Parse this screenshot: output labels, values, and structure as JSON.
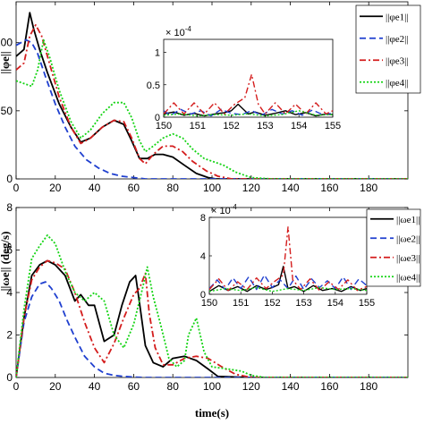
{
  "chart_data": [
    {
      "type": "line",
      "xlabel": "",
      "ylabel": "||φe||",
      "xlim": [
        0,
        200
      ],
      "ylim": [
        0,
        130
      ],
      "xticks": [
        "0",
        "20",
        "40",
        "60",
        "80",
        "100",
        "120",
        "140",
        "160",
        "180"
      ],
      "yticks": [
        "0",
        "50",
        "100"
      ],
      "series": [
        {
          "name": "||φe1||",
          "color": "#000000",
          "dash": "solid",
          "x": [
            0,
            4,
            7,
            9,
            12,
            16,
            22,
            28,
            33,
            38,
            44,
            50,
            55,
            59,
            63,
            67,
            71,
            75,
            80,
            86,
            92,
            98,
            102,
            120,
            200
          ],
          "y": [
            90,
            95,
            122,
            110,
            95,
            78,
            55,
            38,
            27,
            30,
            38,
            43,
            40,
            28,
            15,
            15,
            18,
            18,
            16,
            10,
            4,
            1,
            0,
            0,
            0
          ]
        },
        {
          "name": "||φe2||",
          "color": "#1f3fcf",
          "dash": "dash",
          "x": [
            0,
            5,
            8,
            11,
            15,
            20,
            25,
            30,
            36,
            42,
            48,
            54,
            60,
            66,
            72,
            200
          ],
          "y": [
            98,
            102,
            100,
            92,
            75,
            55,
            38,
            24,
            14,
            8,
            4,
            2,
            1,
            0,
            0,
            0
          ]
        },
        {
          "name": "||φe3||",
          "color": "#d41d1d",
          "dash": "dashdot",
          "x": [
            0,
            4,
            7,
            10,
            13,
            17,
            22,
            28,
            33,
            38,
            44,
            50,
            55,
            59,
            63,
            66,
            70,
            75,
            80,
            85,
            90,
            97,
            103,
            110,
            120,
            200
          ],
          "y": [
            80,
            85,
            105,
            113,
            105,
            85,
            60,
            38,
            26,
            30,
            38,
            43,
            42,
            30,
            15,
            11,
            18,
            24,
            24,
            20,
            13,
            6,
            2,
            0,
            0,
            0
          ]
        },
        {
          "name": "||φe4||",
          "color": "#16d416",
          "dash": "dot",
          "x": [
            0,
            4,
            8,
            11,
            14,
            17,
            22,
            28,
            33,
            38,
            44,
            50,
            55,
            59,
            63,
            66,
            70,
            75,
            80,
            85,
            90,
            96,
            100,
            106,
            112,
            120,
            130,
            200
          ],
          "y": [
            72,
            70,
            68,
            80,
            102,
            90,
            65,
            42,
            30,
            36,
            48,
            56,
            56,
            45,
            28,
            20,
            24,
            30,
            33,
            30,
            22,
            15,
            13,
            10,
            5,
            1,
            0,
            0
          ]
        }
      ],
      "inset": {
        "xlim": [
          150,
          155
        ],
        "ylim": [
          0,
          1.2
        ],
        "xticks": [
          "150",
          "151",
          "152",
          "153",
          "154",
          "155"
        ],
        "yticks": [
          "0",
          "0.5",
          "1"
        ],
        "multiplier": "× 10",
        "multiplier_exp": "-4",
        "series": [
          {
            "x": [
              150,
              150.3,
              150.6,
              150.9,
              151.2,
              151.5,
              151.8,
              152.0,
              152.2,
              152.3,
              152.5,
              152.7,
              153.0,
              153.3,
              153.6,
              153.9,
              154.2,
              154.5,
              154.8,
              155
            ],
            "y": [
              0.05,
              0.08,
              0.03,
              0.06,
              0.02,
              0.05,
              0.07,
              0.1,
              0.2,
              0.15,
              0.05,
              0.08,
              0.03,
              0.06,
              0.1,
              0.04,
              0.07,
              0.02,
              0.05,
              0.04
            ]
          },
          {
            "x": [
              150,
              150.2,
              150.5,
              150.8,
              151.1,
              151.4,
              151.7,
              152.0,
              152.3,
              152.6,
              152.9,
              153.2,
              153.5,
              153.8,
              154.1,
              154.4,
              154.7,
              155
            ],
            "y": [
              0.1,
              0.03,
              0.12,
              0.05,
              0.1,
              0.02,
              0.12,
              0.06,
              0.04,
              0.1,
              0.03,
              0.12,
              0.05,
              0.1,
              0.03,
              0.11,
              0.04,
              0.06
            ]
          },
          {
            "x": [
              150,
              150.3,
              150.6,
              150.9,
              151.2,
              151.5,
              151.8,
              152.1,
              152.4,
              152.6,
              152.8,
              153.0,
              153.3,
              153.6,
              153.9,
              154.2,
              154.5,
              154.8,
              155
            ],
            "y": [
              0.05,
              0.22,
              0.05,
              0.22,
              0.05,
              0.22,
              0.05,
              0.2,
              0.3,
              0.66,
              0.2,
              0.05,
              0.22,
              0.05,
              0.2,
              0.05,
              0.22,
              0.05,
              0.1
            ]
          },
          {
            "x": [
              150,
              150.5,
              151,
              151.5,
              152,
              152.5,
              153,
              153.5,
              154,
              154.5,
              155
            ],
            "y": [
              0.03,
              0.05,
              0.02,
              0.04,
              0.03,
              0.05,
              0.02,
              0.04,
              0.1,
              0.03,
              0.04
            ]
          }
        ]
      }
    },
    {
      "type": "line",
      "xlabel": "time(s)",
      "ylabel": "||ωe|| (deg/s)",
      "xlim": [
        0,
        200
      ],
      "ylim": [
        0,
        8
      ],
      "xticks": [
        "0",
        "20",
        "40",
        "60",
        "80",
        "100",
        "120",
        "140",
        "160",
        "180"
      ],
      "yticks": [
        "0",
        "2",
        "4",
        "6",
        "8"
      ],
      "series": [
        {
          "name": "||ωe1||",
          "color": "#000000",
          "dash": "solid",
          "x": [
            0,
            4,
            8,
            12,
            16,
            20,
            25,
            30,
            33,
            37,
            40,
            45,
            50,
            54,
            58,
            61,
            63,
            66,
            70,
            75,
            80,
            86,
            92,
            98,
            103,
            120,
            200
          ],
          "y": [
            0,
            2.8,
            4.8,
            5.3,
            5.5,
            5.3,
            4.8,
            3.6,
            3.9,
            3.4,
            3.4,
            1.7,
            2.0,
            3.4,
            4.5,
            4.8,
            3.5,
            1.5,
            0.7,
            0.5,
            0.9,
            1.0,
            0.8,
            0.4,
            0.05,
            0,
            0
          ]
        },
        {
          "name": "||ωe2||",
          "color": "#1f3fcf",
          "dash": "dash",
          "x": [
            0,
            4,
            8,
            12,
            15,
            18,
            22,
            26,
            30,
            35,
            40,
            45,
            50,
            55,
            60,
            65,
            70,
            200
          ],
          "y": [
            0,
            2.6,
            3.8,
            4.4,
            4.5,
            4.2,
            3.6,
            2.7,
            1.9,
            1.0,
            0.5,
            0.2,
            0.1,
            0.05,
            0.02,
            0,
            0,
            0
          ]
        },
        {
          "name": "||ωe3||",
          "color": "#d41d1d",
          "dash": "dashdot",
          "x": [
            0,
            4,
            8,
            12,
            16,
            20,
            25,
            30,
            35,
            40,
            45,
            50,
            55,
            60,
            63,
            66,
            68,
            71,
            75,
            80,
            86,
            92,
            98,
            105,
            112,
            120,
            200
          ],
          "y": [
            0,
            2.8,
            4.6,
            5.2,
            5.5,
            5.4,
            5.1,
            4.0,
            2.6,
            1.4,
            0.7,
            1.6,
            2.8,
            3.9,
            4.2,
            4.9,
            3.0,
            1.4,
            0.6,
            0.6,
            0.9,
            1.0,
            0.9,
            0.5,
            0.15,
            0,
            0
          ]
        },
        {
          "name": "||ωe4||",
          "color": "#16d416",
          "dash": "dot",
          "x": [
            0,
            4,
            8,
            12,
            16,
            20,
            25,
            30,
            35,
            40,
            45,
            50,
            55,
            60,
            64,
            67,
            70,
            74,
            78,
            82,
            86,
            88,
            92,
            96,
            100,
            108,
            115,
            120,
            127,
            200
          ],
          "y": [
            0,
            3.2,
            5.6,
            6.2,
            6.7,
            6.3,
            5.0,
            4.0,
            3.6,
            4.0,
            3.6,
            2.0,
            1.4,
            2.5,
            4.0,
            5.2,
            3.8,
            2.4,
            0.9,
            0.5,
            0.8,
            2.0,
            2.8,
            1.2,
            0.5,
            0.4,
            0.3,
            0.1,
            0,
            0
          ]
        }
      ],
      "inset": {
        "xlim": [
          150,
          155
        ],
        "ylim": [
          0,
          8
        ],
        "xticks": [
          "150",
          "151",
          "152",
          "153",
          "154",
          "155"
        ],
        "yticks": [
          "0",
          "4",
          "8"
        ],
        "multiplier": "× 10",
        "multiplier_exp": "-4",
        "series": [
          {
            "x": [
              150,
              150.3,
              150.6,
              150.9,
              151.2,
              151.5,
              151.8,
              152.0,
              152.2,
              152.35,
              152.5,
              152.7,
              153.0,
              153.3,
              153.6,
              153.9,
              154.2,
              154.5,
              154.8,
              155
            ],
            "y": [
              0.3,
              0.9,
              0.4,
              0.8,
              0.3,
              0.9,
              0.5,
              0.7,
              1.0,
              2.9,
              0.6,
              0.8,
              0.3,
              0.9,
              0.4,
              0.6,
              0.3,
              0.8,
              0.4,
              0.6
            ]
          },
          {
            "x": [
              150,
              150.25,
              150.5,
              150.75,
              151,
              151.25,
              151.5,
              151.75,
              152,
              152.25,
              152.5,
              152.75,
              153,
              153.25,
              153.5,
              153.75,
              154,
              154.25,
              154.5,
              154.75,
              155
            ],
            "y": [
              0.6,
              1.5,
              0.5,
              1.7,
              0.6,
              1.8,
              0.5,
              2.0,
              0.7,
              1.5,
              0.6,
              1.9,
              0.5,
              1.6,
              0.7,
              1.4,
              0.6,
              1.8,
              0.5,
              1.6,
              0.9
            ]
          },
          {
            "x": [
              150,
              150.3,
              150.6,
              150.9,
              151.2,
              151.5,
              151.8,
              152.1,
              152.35,
              152.5,
              152.65,
              152.9,
              153.2,
              153.5,
              153.8,
              154.1,
              154.4,
              154.7,
              155
            ],
            "y": [
              0.5,
              1.6,
              0.4,
              1.3,
              0.5,
              1.7,
              0.6,
              1.4,
              2.0,
              7.0,
              1.5,
              0.5,
              1.6,
              0.4,
              1.3,
              0.5,
              1.5,
              0.4,
              0.8
            ]
          },
          {
            "x": [
              150,
              150.5,
              151,
              151.5,
              152,
              152.5,
              153,
              153.5,
              154,
              154.5,
              155
            ],
            "y": [
              0.3,
              0.6,
              0.4,
              0.7,
              0.3,
              0.6,
              0.4,
              0.7,
              0.5,
              0.6,
              0.4
            ]
          }
        ]
      }
    }
  ]
}
